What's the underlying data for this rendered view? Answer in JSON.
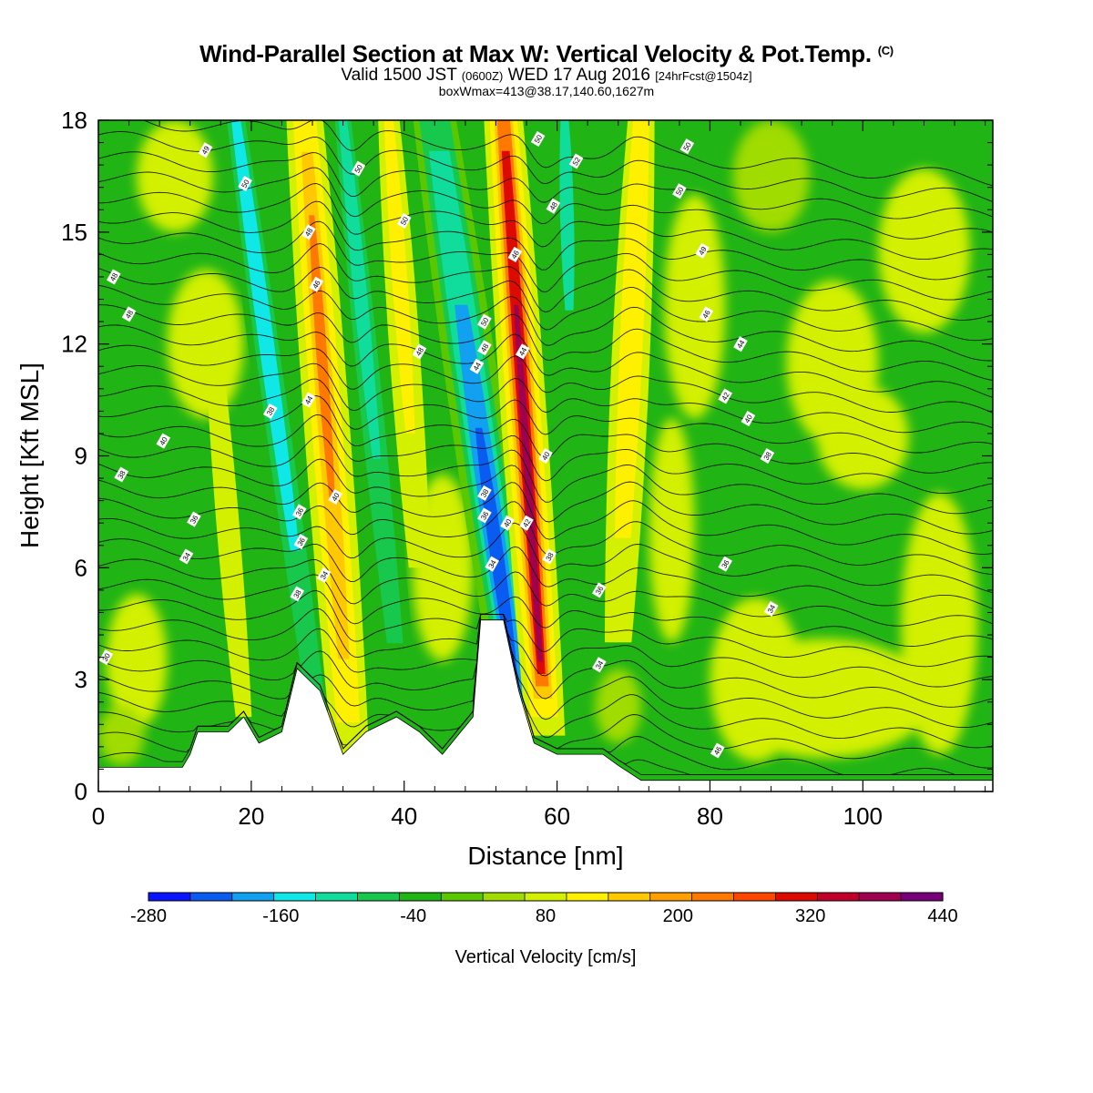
{
  "header": {
    "title": "Wind-Parallel Section at Max W: Vertical Velocity & Pot.Temp.",
    "title_mark": "(C)",
    "valid_a": "Valid 1500 JST",
    "valid_b": "(0600Z)",
    "valid_c": "WED 17 Aug 2016",
    "valid_d": "[24hrFcst@1504z]",
    "box_line": "boxWmax=413@38.17,140.60,1627m"
  },
  "chart_data": {
    "type": "heatmap",
    "xlabel": "Distance [nm]",
    "ylabel": "Height [Kft MSL]",
    "xlim": [
      0,
      117
    ],
    "ylim": [
      0,
      18
    ],
    "xticks": [
      0,
      20,
      40,
      60,
      80,
      100
    ],
    "yticks": [
      0,
      3,
      6,
      9,
      12,
      15,
      18
    ],
    "grid": false,
    "colorbar": {
      "label": "Vertical Velocity [cm/s]",
      "range": [
        -280,
        440
      ],
      "tick_values": [
        -280,
        -160,
        -40,
        80,
        200,
        320,
        440
      ],
      "tick_labels": [
        "-280",
        "-160",
        "-40",
        "80",
        "200",
        "320",
        "440"
      ],
      "colors": [
        "#0a14ff",
        "#0a5cf0",
        "#12a0f0",
        "#10e8e8",
        "#10dc9c",
        "#18c84c",
        "#20b414",
        "#5ac800",
        "#a0dc00",
        "#d2f000",
        "#fff000",
        "#ffc800",
        "#ffa000",
        "#ff7800",
        "#ff4600",
        "#dc0a00",
        "#c00028",
        "#a00050",
        "#780078"
      ]
    },
    "terrain_height_kft": [
      [
        0,
        0.65
      ],
      [
        11,
        0.65
      ],
      [
        12,
        1.0
      ],
      [
        13,
        1.6
      ],
      [
        17,
        1.6
      ],
      [
        19,
        2.0
      ],
      [
        21,
        1.3
      ],
      [
        24,
        1.6
      ],
      [
        26,
        3.3
      ],
      [
        29,
        2.7
      ],
      [
        32,
        1.0
      ],
      [
        35,
        1.6
      ],
      [
        39,
        2.0
      ],
      [
        42,
        1.6
      ],
      [
        45,
        1.0
      ],
      [
        49,
        2.0
      ],
      [
        50,
        4.6
      ],
      [
        53,
        4.6
      ],
      [
        55,
        2.7
      ],
      [
        57,
        1.3
      ],
      [
        60,
        1.0
      ],
      [
        66,
        1.0
      ],
      [
        68,
        0.7
      ],
      [
        71,
        0.3
      ],
      [
        117,
        0.3
      ]
    ],
    "updrafts": [
      {
        "x0": 58.5,
        "y0": 1.5,
        "x1": 53,
        "y1": 18,
        "peak_cm_s": 413
      },
      {
        "x0": 33,
        "y0": 1.0,
        "x1": 27,
        "y1": 18,
        "peak_cm_s": 240
      },
      {
        "x0": 68,
        "y0": 4,
        "x1": 71,
        "y1": 18,
        "peak_cm_s": 120
      }
    ],
    "downdrafts": [
      {
        "x0": 55.5,
        "y0": 1.5,
        "x1": 44,
        "y1": 18,
        "peak_cm_s": -260
      },
      {
        "x0": 29,
        "y0": 1.5,
        "x1": 18,
        "y1": 18,
        "peak_cm_s": -150
      },
      {
        "x0": 40,
        "y0": 1.5,
        "x1": 32,
        "y1": 18,
        "peak_cm_s": -140
      },
      {
        "x0": 62,
        "y0": 10,
        "x1": 61,
        "y1": 18,
        "peak_cm_s": -150
      }
    ],
    "isotherm_labels": [
      {
        "text": "30",
        "x": 1,
        "y": 3.6
      },
      {
        "text": "34",
        "x": 11.5,
        "y": 6.3
      },
      {
        "text": "36",
        "x": 12.5,
        "y": 7.3
      },
      {
        "text": "38",
        "x": 3,
        "y": 8.5
      },
      {
        "text": "40",
        "x": 8.5,
        "y": 9.4
      },
      {
        "text": "48",
        "x": 4,
        "y": 12.8
      },
      {
        "text": "48",
        "x": 2,
        "y": 13.8
      },
      {
        "text": "38",
        "x": 22.5,
        "y": 10.2
      },
      {
        "text": "38",
        "x": 26,
        "y": 5.3
      },
      {
        "text": "36",
        "x": 26.5,
        "y": 6.7
      },
      {
        "text": "36",
        "x": 26.3,
        "y": 7.5
      },
      {
        "text": "44",
        "x": 27.5,
        "y": 10.5
      },
      {
        "text": "40",
        "x": 31,
        "y": 7.9
      },
      {
        "text": "34",
        "x": 29.5,
        "y": 5.8
      },
      {
        "text": "46",
        "x": 28.5,
        "y": 13.6
      },
      {
        "text": "48",
        "x": 27.5,
        "y": 15.0
      },
      {
        "text": "49",
        "x": 14,
        "y": 17.2
      },
      {
        "text": "50",
        "x": 19.2,
        "y": 16.3
      },
      {
        "text": "50",
        "x": 34,
        "y": 16.7
      },
      {
        "text": "50",
        "x": 40,
        "y": 15.3
      },
      {
        "text": "48",
        "x": 42,
        "y": 11.8
      },
      {
        "text": "50",
        "x": 50.5,
        "y": 12.6
      },
      {
        "text": "48",
        "x": 50.5,
        "y": 11.9
      },
      {
        "text": "44",
        "x": 49.5,
        "y": 11.4
      },
      {
        "text": "38",
        "x": 50.5,
        "y": 8.0
      },
      {
        "text": "36",
        "x": 50.5,
        "y": 7.4
      },
      {
        "text": "40",
        "x": 53.5,
        "y": 7.2
      },
      {
        "text": "34",
        "x": 51.5,
        "y": 6.1
      },
      {
        "text": "42",
        "x": 56,
        "y": 7.2
      },
      {
        "text": "38",
        "x": 59,
        "y": 6.3
      },
      {
        "text": "40",
        "x": 58.5,
        "y": 9.0
      },
      {
        "text": "44",
        "x": 55.5,
        "y": 11.8
      },
      {
        "text": "46",
        "x": 54.5,
        "y": 14.4
      },
      {
        "text": "50",
        "x": 57.5,
        "y": 17.5
      },
      {
        "text": "48",
        "x": 59.5,
        "y": 15.7
      },
      {
        "text": "52",
        "x": 62.5,
        "y": 16.9
      },
      {
        "text": "36",
        "x": 65.5,
        "y": 5.4
      },
      {
        "text": "34",
        "x": 65.5,
        "y": 3.4
      },
      {
        "text": "50",
        "x": 77,
        "y": 17.3
      },
      {
        "text": "50",
        "x": 76,
        "y": 16.1
      },
      {
        "text": "49",
        "x": 79,
        "y": 14.5
      },
      {
        "text": "46",
        "x": 79.5,
        "y": 12.8
      },
      {
        "text": "44",
        "x": 84,
        "y": 12.0
      },
      {
        "text": "42",
        "x": 82,
        "y": 10.6
      },
      {
        "text": "40",
        "x": 85,
        "y": 10.0
      },
      {
        "text": "38",
        "x": 87.5,
        "y": 9.0
      },
      {
        "text": "36",
        "x": 82,
        "y": 6.1
      },
      {
        "text": "34",
        "x": 88,
        "y": 4.9
      },
      {
        "text": "46",
        "x": 81,
        "y": 1.1
      }
    ]
  }
}
